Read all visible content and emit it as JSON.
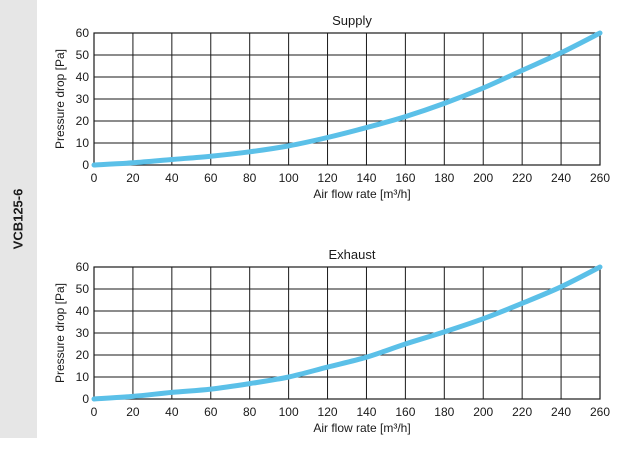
{
  "side_label": "VCB125-6",
  "chart_data": [
    {
      "type": "line",
      "title": "Supply",
      "xlabel": "Air flow rate [m³/h]",
      "ylabel": "Pressure drop [Pa]",
      "xlim": [
        0,
        260
      ],
      "ylim": [
        0,
        60
      ],
      "x_ticks": [
        "0",
        "20",
        "40",
        "60",
        "80",
        "100",
        "120",
        "140",
        "160",
        "180",
        "200",
        "220",
        "240",
        "260"
      ],
      "y_ticks": [
        "0",
        "10",
        "20",
        "30",
        "40",
        "50",
        "60"
      ],
      "grid": true,
      "line_color": "#5bc0e8",
      "series": [
        {
          "x": [
            0,
            20,
            40,
            60,
            80,
            100,
            120,
            140,
            160,
            180,
            200,
            220,
            240,
            260
          ],
          "y": [
            0,
            1,
            2.5,
            4,
            6,
            8.7,
            12.5,
            17,
            22,
            28,
            35,
            43,
            51,
            60
          ]
        }
      ]
    },
    {
      "type": "line",
      "title": "Exhaust",
      "xlabel": "Air flow rate [m³/h]",
      "ylabel": "Pressure drop [Pa]",
      "xlim": [
        0,
        260
      ],
      "ylim": [
        0,
        60
      ],
      "x_ticks": [
        "0",
        "20",
        "40",
        "60",
        "80",
        "100",
        "120",
        "140",
        "160",
        "180",
        "200",
        "220",
        "240",
        "260"
      ],
      "y_ticks": [
        "0",
        "10",
        "20",
        "30",
        "40",
        "50",
        "60"
      ],
      "grid": true,
      "line_color": "#5bc0e8",
      "series": [
        {
          "x": [
            0,
            20,
            40,
            60,
            80,
            100,
            120,
            140,
            160,
            180,
            200,
            220,
            240,
            260
          ],
          "y": [
            0,
            1.2,
            3,
            4.5,
            7,
            10,
            14.5,
            19,
            25,
            30.5,
            36.5,
            43.5,
            51,
            60
          ]
        }
      ]
    }
  ]
}
